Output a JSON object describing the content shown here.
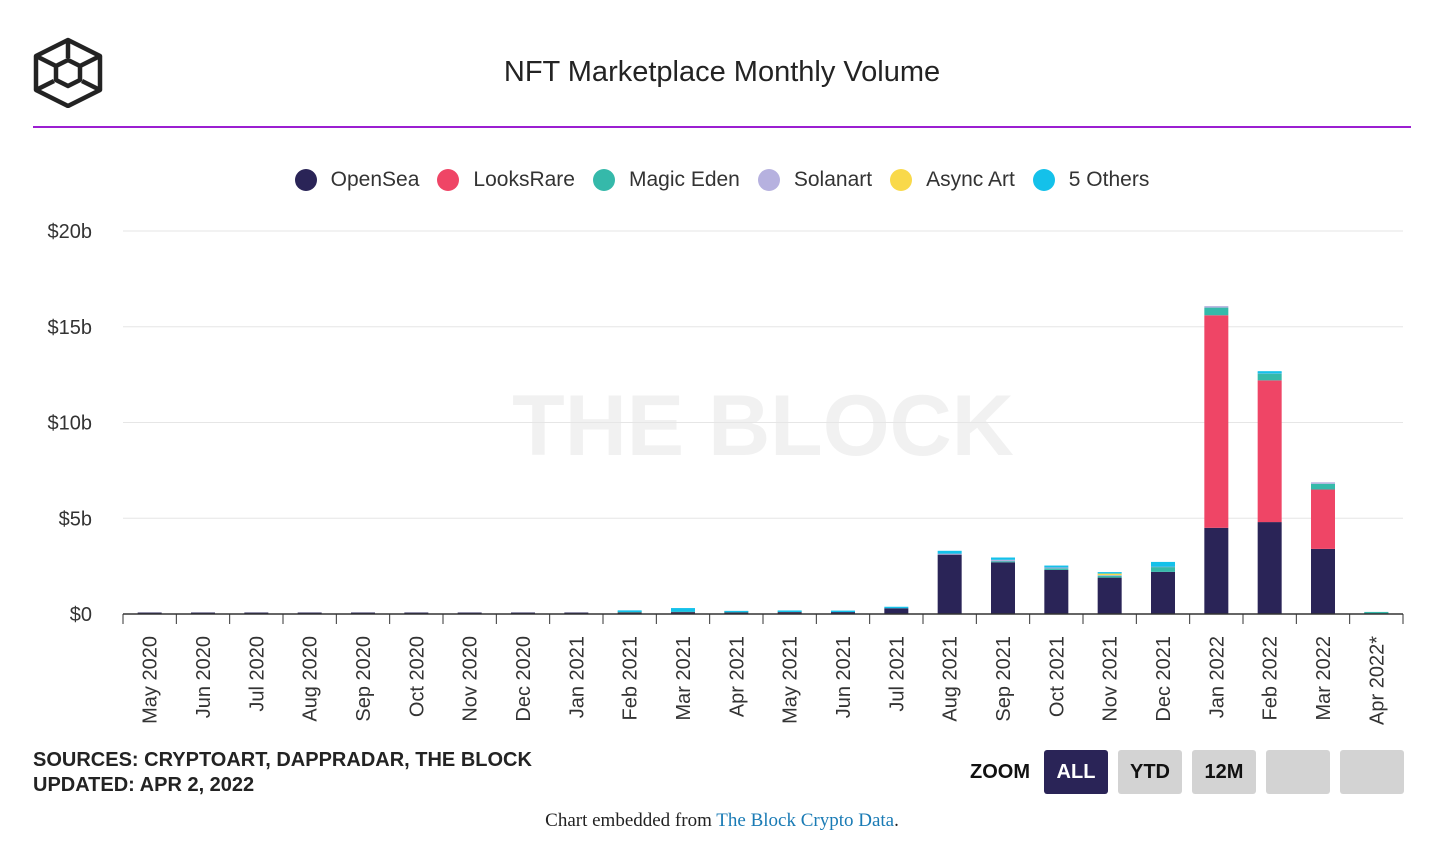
{
  "header": {
    "title": "NFT Marketplace Monthly Volume",
    "logo_icon": "cube-icon"
  },
  "watermark": "THE BLOCK",
  "colors": {
    "accent": "#9b1fd1",
    "opensea": "#2a2457",
    "looksrare": "#ef4566",
    "magic_eden": "#35b9aa",
    "solanart": "#b6b1df",
    "async_art": "#f9d94a",
    "others": "#14c1ea"
  },
  "chart_data": {
    "type": "bar",
    "stacked": true,
    "title": "NFT Marketplace Monthly Volume",
    "xlabel": "",
    "ylabel": "",
    "ylim": [
      0,
      20
    ],
    "yticks": [
      {
        "value": 0,
        "label": "$0"
      },
      {
        "value": 5,
        "label": "$5b"
      },
      {
        "value": 10,
        "label": "$10b"
      },
      {
        "value": 15,
        "label": "$15b"
      },
      {
        "value": 20,
        "label": "$20b"
      }
    ],
    "grid": true,
    "legend_position": "top",
    "categories": [
      "May 2020",
      "Jun 2020",
      "Jul 2020",
      "Aug 2020",
      "Sep 2020",
      "Oct 2020",
      "Nov 2020",
      "Dec 2020",
      "Jan 2021",
      "Feb 2021",
      "Mar 2021",
      "Apr 2021",
      "May 2021",
      "Jun 2021",
      "Jul 2021",
      "Aug 2021",
      "Sep 2021",
      "Oct 2021",
      "Nov 2021",
      "Dec 2021",
      "Jan 2022",
      "Feb 2022",
      "Mar 2022",
      "Apr 2022*"
    ],
    "series": [
      {
        "name": "OpenSea",
        "color": "#2a2457",
        "values": [
          0.002,
          0.003,
          0.004,
          0.006,
          0.008,
          0.007,
          0.008,
          0.01,
          0.01,
          0.08,
          0.1,
          0.08,
          0.1,
          0.1,
          0.3,
          3.1,
          2.7,
          2.3,
          1.9,
          2.2,
          4.5,
          4.8,
          3.4,
          0.03
        ]
      },
      {
        "name": "LooksRare",
        "color": "#ef4566",
        "values": [
          0,
          0,
          0,
          0,
          0,
          0,
          0,
          0,
          0,
          0,
          0,
          0,
          0,
          0,
          0,
          0,
          0,
          0,
          0,
          0,
          11.1,
          7.4,
          3.1,
          0
        ]
      },
      {
        "name": "Magic Eden",
        "color": "#35b9aa",
        "values": [
          0,
          0,
          0,
          0,
          0,
          0,
          0,
          0,
          0,
          0,
          0,
          0,
          0,
          0,
          0,
          0,
          0.05,
          0.08,
          0.1,
          0.25,
          0.4,
          0.35,
          0.3,
          0.03
        ]
      },
      {
        "name": "Solanart",
        "color": "#b6b1df",
        "values": [
          0,
          0,
          0,
          0,
          0,
          0,
          0,
          0,
          0,
          0,
          0,
          0,
          0,
          0,
          0,
          0.05,
          0.08,
          0.05,
          0.03,
          0.02,
          0.01,
          0.01,
          0.01,
          0
        ]
      },
      {
        "name": "Async Art",
        "color": "#f9d94a",
        "values": [
          0,
          0,
          0,
          0,
          0,
          0,
          0,
          0,
          0,
          0.01,
          0.01,
          0.005,
          0.005,
          0,
          0,
          0,
          0,
          0,
          0.08,
          0,
          0,
          0,
          0,
          0
        ]
      },
      {
        "name": "5 Others",
        "color": "#14c1ea",
        "values": [
          0,
          0,
          0,
          0,
          0,
          0,
          0,
          0,
          0,
          0.1,
          0.2,
          0.04,
          0.08,
          0.02,
          0.04,
          0.15,
          0.12,
          0.1,
          0.05,
          0.25,
          0,
          0.12,
          0,
          0
        ]
      }
    ]
  },
  "sources": {
    "line1": "SOURCES: CRYPTOART, DAPPRADAR, THE BLOCK",
    "line2": "UPDATED: APR 2, 2022"
  },
  "zoom": {
    "label": "ZOOM",
    "buttons": [
      "ALL",
      "YTD",
      "12M",
      "",
      ""
    ],
    "selected": "ALL"
  },
  "footer": {
    "prefix": "Chart embedded from ",
    "link": "The Block Crypto Data",
    "suffix": "."
  }
}
